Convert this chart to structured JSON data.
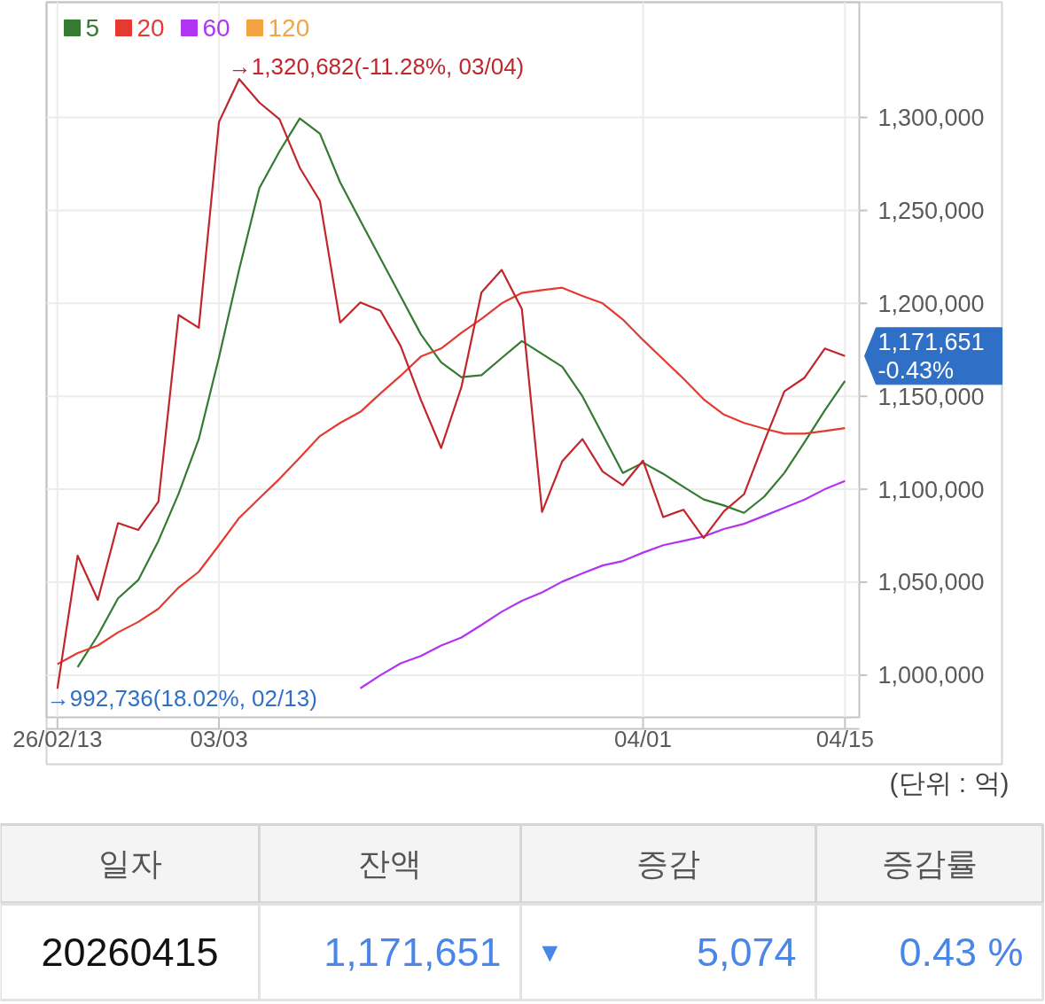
{
  "chart_data": [
    {
      "type": "line",
      "categories": [
        "26/02/13",
        null,
        null,
        null,
        null,
        null,
        null,
        null,
        "03/03",
        null,
        null,
        null,
        null,
        null,
        null,
        null,
        null,
        null,
        null,
        null,
        null,
        null,
        null,
        null,
        null,
        null,
        null,
        null,
        null,
        "04/01",
        null,
        null,
        null,
        null,
        null,
        null,
        null,
        null,
        null,
        "04/15"
      ],
      "series": [
        {
          "name": "5",
          "color": "#357a32",
          "values": [
            null,
            1004300,
            1021400,
            1041300,
            1051100,
            1072200,
            1097600,
            1127000,
            1171000,
            1218300,
            1262000,
            1281800,
            1299500,
            1291300,
            1265100,
            1244500,
            1224100,
            1203700,
            1183300,
            1168300,
            1160300,
            1161400,
            1170600,
            1179700,
            1172800,
            1165900,
            1150000,
            1129400,
            1108800,
            1114300,
            1108300,
            1101300,
            1094500,
            1091300,
            1087300,
            1096000,
            1108800,
            1125400,
            1142400,
            1158300
          ]
        },
        {
          "name": "20",
          "color": "#e53a30",
          "values": [
            1005900,
            1011900,
            1015900,
            1023000,
            1028600,
            1035700,
            1047100,
            1055600,
            1069900,
            1084600,
            1095200,
            1105600,
            1117000,
            1128600,
            1135700,
            1141600,
            1151600,
            1161100,
            1171400,
            1175700,
            1184100,
            1191600,
            1200000,
            1205600,
            1207100,
            1208400,
            1204000,
            1200000,
            1191300,
            1180300,
            1169900,
            1159500,
            1148400,
            1140200,
            1135700,
            1132600,
            1129900,
            1129900,
            1131300,
            1132900
          ]
        },
        {
          "name": "60",
          "color": "#b034f0",
          "values": [
            null,
            null,
            null,
            null,
            null,
            null,
            null,
            null,
            null,
            null,
            null,
            null,
            null,
            null,
            null,
            992900,
            1000000,
            1006400,
            1010300,
            1015900,
            1020200,
            1027000,
            1034100,
            1040000,
            1044500,
            1050300,
            1054800,
            1059000,
            1061400,
            1065900,
            1069900,
            1072200,
            1074600,
            1078600,
            1081400,
            1085700,
            1090000,
            1094500,
            1100000,
            1104500
          ]
        },
        {
          "name": "120",
          "color": "#f4a340",
          "values": [
            null,
            null,
            null,
            null,
            null,
            null,
            null,
            null,
            null,
            null,
            null,
            null,
            null,
            null,
            null,
            null,
            null,
            null,
            null,
            null,
            null,
            null,
            null,
            null,
            null,
            null,
            null,
            null,
            null,
            null,
            null,
            null,
            null,
            null,
            null,
            null,
            null,
            null,
            null,
            null
          ]
        },
        {
          "color": "#c0262b",
          "values": [
            992736,
            1064300,
            1040500,
            1081800,
            1078100,
            1093300,
            1193700,
            1186900,
            1297600,
            1320682,
            1308000,
            1299000,
            1273000,
            1255100,
            1189700,
            1200500,
            1196000,
            1177000,
            1148000,
            1122200,
            1154800,
            1205900,
            1218000,
            1196900,
            1087800,
            1115100,
            1127000,
            1109500,
            1102100,
            1115400,
            1085000,
            1089000,
            1073800,
            1088100,
            1097300,
            1125600,
            1152700,
            1160000,
            1175700,
            1171651
          ]
        }
      ],
      "ylim": [
        977300,
        1362000
      ],
      "yticks": [
        {
          "value": 1000000,
          "label": "1,000,000"
        },
        {
          "value": 1050000,
          "label": "1,050,000"
        },
        {
          "value": 1100000,
          "label": "1,100,000"
        },
        {
          "value": 1150000,
          "label": "1,150,000"
        },
        {
          "value": 1200000,
          "label": "1,200,000"
        },
        {
          "value": 1250000,
          "label": "1,250,000"
        },
        {
          "value": 1300000,
          "label": "1,300,000"
        }
      ],
      "grid": true,
      "legend": "top left",
      "annotations": [
        "→1,320,682(-11.28%, 03/04)",
        {
          "text": "→992,736(18.02%, 02/13)",
          "x": "26/02/13",
          "y": 992736
        },
        {
          "text": "1,171,651",
          "x": "04/15",
          "y": 1171651
        },
        "-0.43%",
        "(단위 : 억)"
      ]
    },
    {
      "type": "other",
      "categories": [
        "일자",
        "잔액",
        "증감",
        "증감률"
      ],
      "annotations": [
        "20260415",
        "1,171,651",
        "▼",
        "5,074",
        "0.43 %"
      ]
    }
  ]
}
